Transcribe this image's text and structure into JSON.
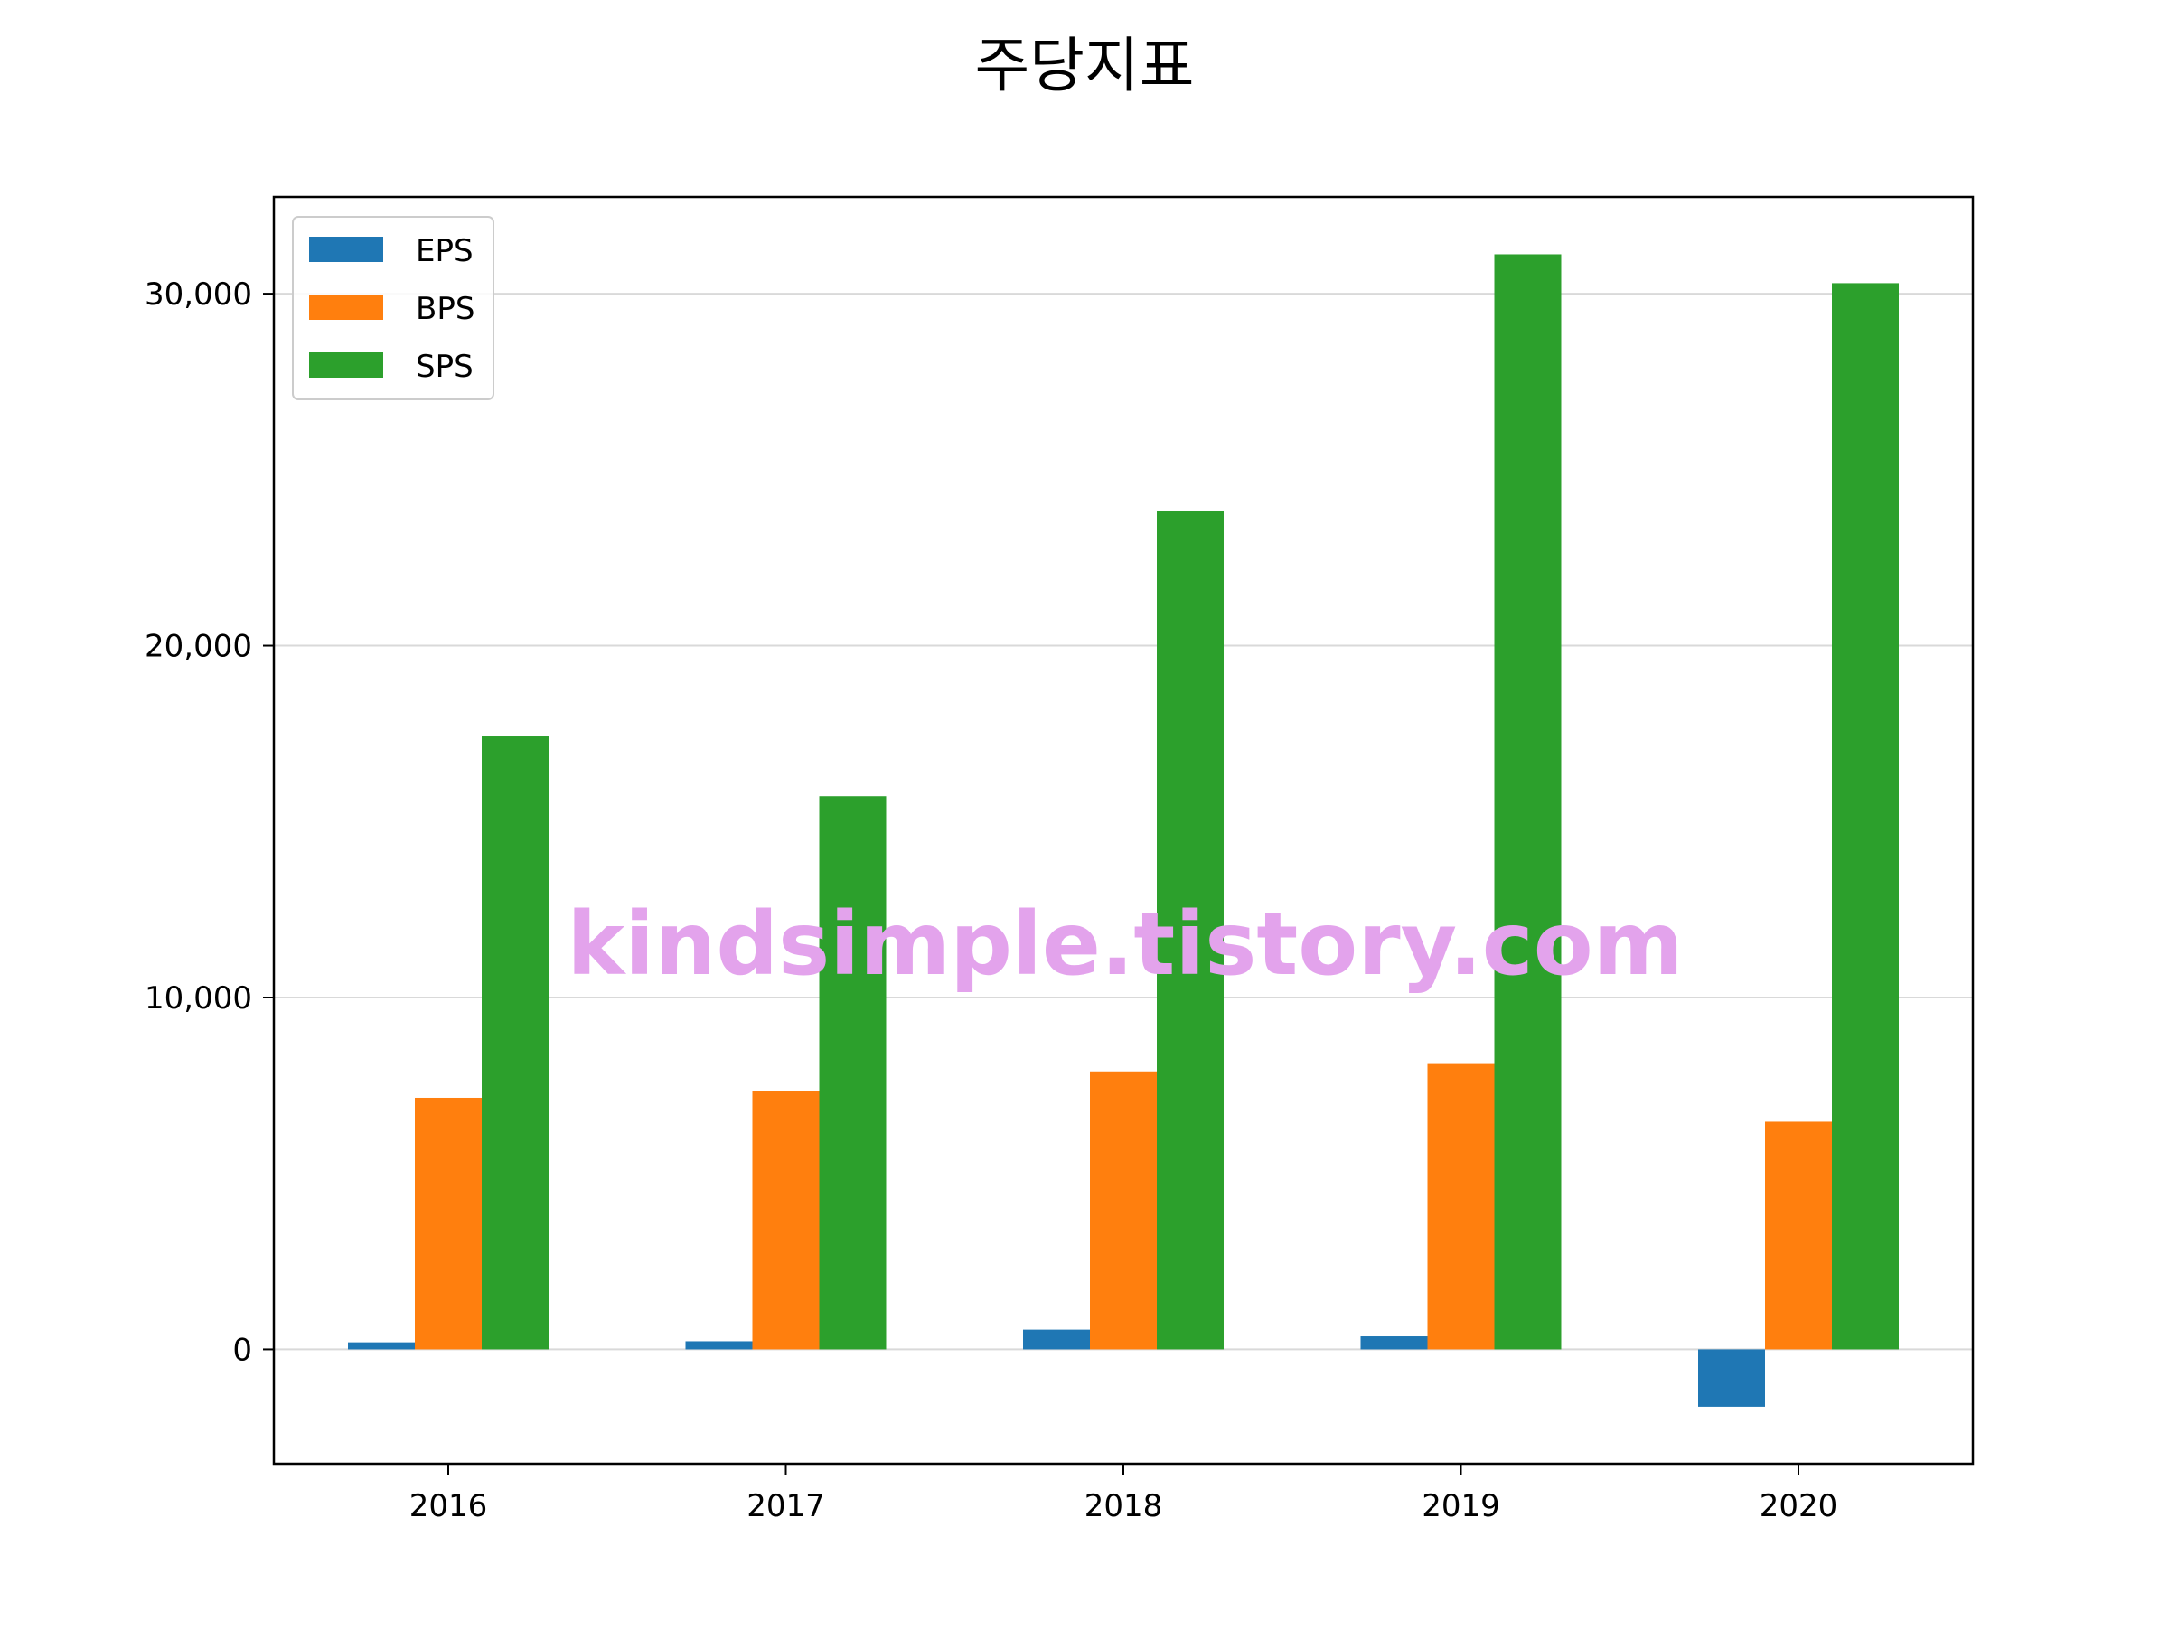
{
  "chart_data": {
    "type": "bar",
    "title": "주당지표",
    "xlabel": "",
    "ylabel": "",
    "categories": [
      "2016",
      "2017",
      "2018",
      "2019",
      "2020"
    ],
    "series": [
      {
        "name": "EPS",
        "color": "#1f77b4",
        "values": [
          200,
          230,
          560,
          370,
          -1630
        ]
      },
      {
        "name": "BPS",
        "color": "#ff7f0e",
        "values": [
          7150,
          7330,
          7900,
          8110,
          6470
        ]
      },
      {
        "name": "SPS",
        "color": "#2ca02c",
        "values": [
          17420,
          15720,
          23840,
          31120,
          30300
        ]
      }
    ],
    "ylim": [
      -3250,
      32750
    ],
    "yticks": [
      0,
      10000,
      20000,
      30000
    ],
    "ytick_labels": [
      "0",
      "10,000",
      "20,000",
      "30,000"
    ],
    "grid": "horizontal",
    "legend_position": "top-left",
    "watermark": "kindsimple.tistory.com",
    "watermark_color": "#e3a3ec"
  }
}
